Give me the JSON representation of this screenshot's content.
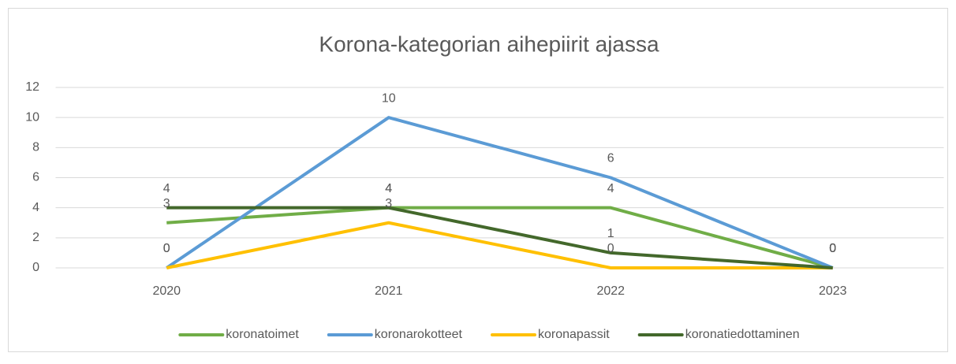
{
  "chart_data": {
    "type": "line",
    "title": "Korona-kategorian aihepiirit ajassa",
    "categories": [
      "2020",
      "2021",
      "2022",
      "2023"
    ],
    "series": [
      {
        "name": "koronatoimet",
        "color": "#70ad47",
        "values": [
          3,
          4,
          4,
          0
        ]
      },
      {
        "name": "koronarokotteet",
        "color": "#5b9bd5",
        "values": [
          0,
          10,
          6,
          0
        ]
      },
      {
        "name": "koronapassit",
        "color": "#ffc000",
        "values": [
          0,
          3,
          0,
          0
        ]
      },
      {
        "name": "koronatiedottaminen",
        "color": "#43682b",
        "values": [
          4,
          4,
          1,
          0
        ]
      }
    ],
    "ylim": [
      0,
      12
    ],
    "yticks": [
      0,
      2,
      4,
      6,
      8,
      10,
      12
    ],
    "grid": true,
    "legend": "bottom"
  }
}
